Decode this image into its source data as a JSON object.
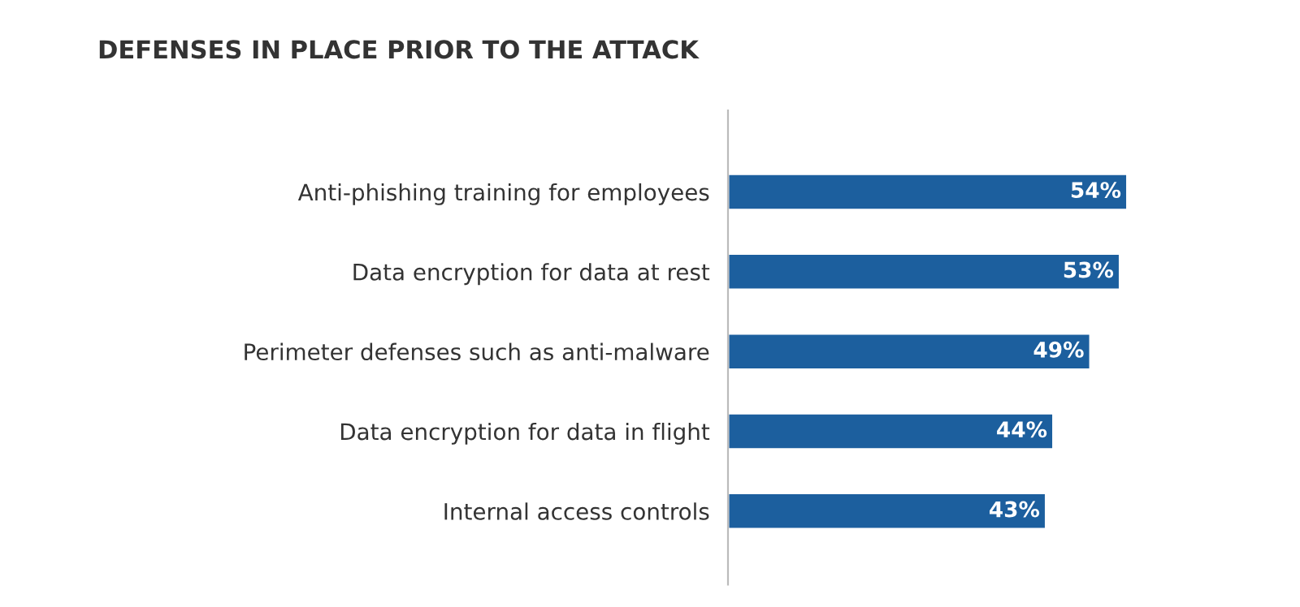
{
  "chart_data": {
    "type": "bar",
    "orientation": "horizontal",
    "title": "DEFENSES IN PLACE PRIOR TO THE ATTACK",
    "categories": [
      "Anti-phishing training for employees",
      "Data encryption for data at rest",
      "Perimeter defenses such as anti-malware",
      "Data encryption for data in flight",
      "Internal access controls"
    ],
    "values": [
      54,
      53,
      49,
      44,
      43
    ],
    "value_labels": [
      "54%",
      "53%",
      "49%",
      "44%",
      "43%"
    ],
    "color": "#1c5f9e",
    "tick_labels": "y",
    "grid": false,
    "legend": false
  }
}
